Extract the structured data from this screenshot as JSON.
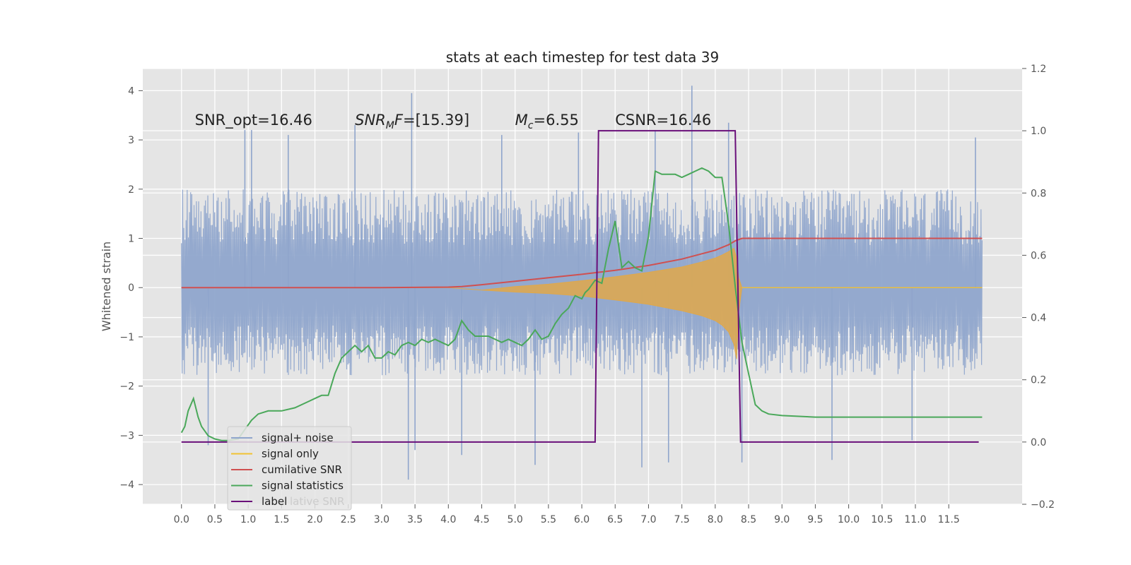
{
  "chart_data": {
    "type": "line",
    "title": "stats at each timestep for test data 39",
    "ylabel": "Whitened strain",
    "xlim": [
      -0.58,
      12.6
    ],
    "ylim": [
      -4.4,
      4.45
    ],
    "y2lim": [
      -0.2,
      1.2
    ],
    "x_ticks": [
      "0.0",
      "0.5",
      "1.0",
      "1.5",
      "2.0",
      "2.5",
      "3.0",
      "3.5",
      "4.0",
      "4.5",
      "5.0",
      "5.5",
      "6.0",
      "6.5",
      "7.0",
      "7.5",
      "8.0",
      "8.5",
      "9.0",
      "9.5",
      "10.0",
      "10.5",
      "11.0",
      "11.5"
    ],
    "y_ticks": [
      "−4",
      "−3",
      "−2",
      "−1",
      "0",
      "1",
      "2",
      "3",
      "4"
    ],
    "y2_ticks": [
      "−0.2",
      "0.0",
      "0.2",
      "0.4",
      "0.6",
      "0.8",
      "1.0",
      "1.2"
    ],
    "grid": true,
    "legend_position": "lower-left",
    "annotations": [
      {
        "text": "SNR_opt=16.46",
        "x": 0.2,
        "y": 3.3
      },
      {
        "text": "=[15.39]",
        "x": 2.6,
        "y": 3.3,
        "math": "SNR",
        "math_sub": "M",
        "math_tail": "F"
      },
      {
        "text": "=6.55",
        "x": 5.0,
        "y": 3.3,
        "math": "M",
        "math_sub": "c"
      },
      {
        "text": "CSNR=16.46",
        "x": 6.5,
        "y": 3.3
      }
    ],
    "colors": {
      "noise": "#8fa5cc",
      "signal": "#e0a84a",
      "cumulative": "#d05050",
      "stats": "#4aa85a",
      "label": "#6a0f7a"
    },
    "series": [
      {
        "name": "signal+ noise",
        "kind": "noise_band",
        "x_range": [
          0.0,
          12.0
        ],
        "typical_range": [
          -1.7,
          1.9
        ],
        "peaks": [
          {
            "x": 0.95,
            "y": 3.2
          },
          {
            "x": 1.05,
            "y": 3.2
          },
          {
            "x": 1.6,
            "y": 3.1
          },
          {
            "x": 2.6,
            "y": 3.3
          },
          {
            "x": 3.45,
            "y": 3.95
          },
          {
            "x": 4.8,
            "y": 3.1
          },
          {
            "x": 5.95,
            "y": 3.15
          },
          {
            "x": 7.1,
            "y": 3.2
          },
          {
            "x": 7.65,
            "y": 4.1
          },
          {
            "x": 8.2,
            "y": 3.35
          },
          {
            "x": 11.9,
            "y": 3.05
          },
          {
            "x": 0.4,
            "y": -3.2
          },
          {
            "x": 3.4,
            "y": -3.9
          },
          {
            "x": 3.5,
            "y": -3.3
          },
          {
            "x": 4.2,
            "y": -3.4
          },
          {
            "x": 5.3,
            "y": -3.6
          },
          {
            "x": 6.9,
            "y": -3.65
          },
          {
            "x": 7.3,
            "y": -3.55
          },
          {
            "x": 8.4,
            "y": -3.55
          },
          {
            "x": 9.75,
            "y": -3.5
          },
          {
            "x": 10.95,
            "y": -3.1
          }
        ]
      },
      {
        "name": "signal only",
        "kind": "chirp_envelope",
        "x": [
          0.0,
          4.0,
          4.5,
          5.0,
          5.5,
          6.0,
          6.5,
          7.0,
          7.5,
          7.8,
          8.0,
          8.1,
          8.2,
          8.28,
          8.32,
          8.35,
          8.4,
          12.0
        ],
        "upper": [
          0.0,
          0.0,
          -0.05,
          0.02,
          0.07,
          0.14,
          0.22,
          0.31,
          0.42,
          0.52,
          0.6,
          0.66,
          0.73,
          0.8,
          0.6,
          0.2,
          0.0,
          0.0
        ],
        "lower": [
          0.0,
          0.0,
          -0.05,
          -0.09,
          -0.12,
          -0.17,
          -0.25,
          -0.34,
          -0.47,
          -0.57,
          -0.67,
          -0.76,
          -0.9,
          -1.15,
          -1.45,
          -0.5,
          0.0,
          0.0
        ]
      },
      {
        "name": "cumilative SNR",
        "axis": "left",
        "x": [
          0.0,
          1.0,
          2.0,
          3.0,
          4.0,
          4.2,
          4.5,
          5.0,
          5.5,
          6.0,
          6.5,
          7.0,
          7.5,
          8.0,
          8.2,
          8.3,
          8.4,
          10.0,
          12.0
        ],
        "values": [
          0.0,
          0.0,
          0.0,
          0.0,
          0.01,
          0.02,
          0.06,
          0.13,
          0.2,
          0.27,
          0.35,
          0.45,
          0.58,
          0.76,
          0.87,
          0.95,
          1.0,
          1.0,
          1.0
        ]
      },
      {
        "name": "signal statistics",
        "axis": "right",
        "x": [
          0.0,
          0.05,
          0.1,
          0.18,
          0.25,
          0.3,
          0.4,
          0.5,
          0.6,
          0.7,
          0.85,
          0.95,
          1.05,
          1.15,
          1.3,
          1.5,
          1.7,
          1.9,
          2.0,
          2.1,
          2.2,
          2.3,
          2.4,
          2.5,
          2.6,
          2.7,
          2.8,
          2.9,
          3.0,
          3.1,
          3.2,
          3.3,
          3.4,
          3.5,
          3.6,
          3.7,
          3.8,
          3.9,
          4.0,
          4.1,
          4.2,
          4.3,
          4.4,
          4.5,
          4.6,
          4.7,
          4.8,
          4.9,
          5.0,
          5.1,
          5.2,
          5.3,
          5.4,
          5.5,
          5.6,
          5.7,
          5.8,
          5.9,
          6.0,
          6.05,
          6.1,
          6.2,
          6.3,
          6.4,
          6.5,
          6.6,
          6.7,
          6.8,
          6.9,
          7.0,
          7.1,
          7.2,
          7.3,
          7.4,
          7.5,
          7.6,
          7.7,
          7.8,
          7.9,
          8.0,
          8.1,
          8.2,
          8.3,
          8.4,
          8.5,
          8.6,
          8.7,
          8.8,
          9.0,
          9.5,
          10.0,
          10.5,
          11.0,
          11.5,
          12.0
        ],
        "values": [
          0.03,
          0.05,
          0.1,
          0.14,
          0.08,
          0.05,
          0.02,
          0.01,
          0.005,
          0.005,
          0.01,
          0.04,
          0.07,
          0.09,
          0.1,
          0.1,
          0.11,
          0.13,
          0.14,
          0.15,
          0.15,
          0.22,
          0.27,
          0.29,
          0.31,
          0.29,
          0.31,
          0.27,
          0.27,
          0.29,
          0.28,
          0.31,
          0.32,
          0.31,
          0.33,
          0.32,
          0.33,
          0.32,
          0.31,
          0.33,
          0.39,
          0.36,
          0.34,
          0.34,
          0.34,
          0.33,
          0.32,
          0.33,
          0.32,
          0.31,
          0.33,
          0.36,
          0.33,
          0.34,
          0.38,
          0.41,
          0.43,
          0.47,
          0.46,
          0.48,
          0.49,
          0.52,
          0.51,
          0.62,
          0.71,
          0.56,
          0.58,
          0.56,
          0.55,
          0.66,
          0.87,
          0.86,
          0.86,
          0.86,
          0.85,
          0.86,
          0.87,
          0.88,
          0.87,
          0.85,
          0.85,
          0.7,
          0.5,
          0.32,
          0.22,
          0.12,
          0.1,
          0.09,
          0.085,
          0.08,
          0.08,
          0.08,
          0.08,
          0.08,
          0.08
        ]
      },
      {
        "name": "label",
        "axis": "right",
        "x": [
          0.0,
          6.2,
          6.25,
          8.3,
          8.38,
          11.95
        ],
        "values": [
          0.0,
          0.0,
          1.0,
          1.0,
          0.0,
          0.0
        ]
      }
    ],
    "legend": [
      {
        "label": "signal+ noise",
        "color": "#8fa5cc"
      },
      {
        "label": "signal only",
        "color": "#f1c232"
      },
      {
        "label": "cumilative SNR",
        "color": "#d05050"
      },
      {
        "label": "signal statistics",
        "color": "#4aa85a"
      },
      {
        "label": "label",
        "color": "#6a0f7a"
      }
    ],
    "legend_overlap_text": "lative SNR"
  }
}
